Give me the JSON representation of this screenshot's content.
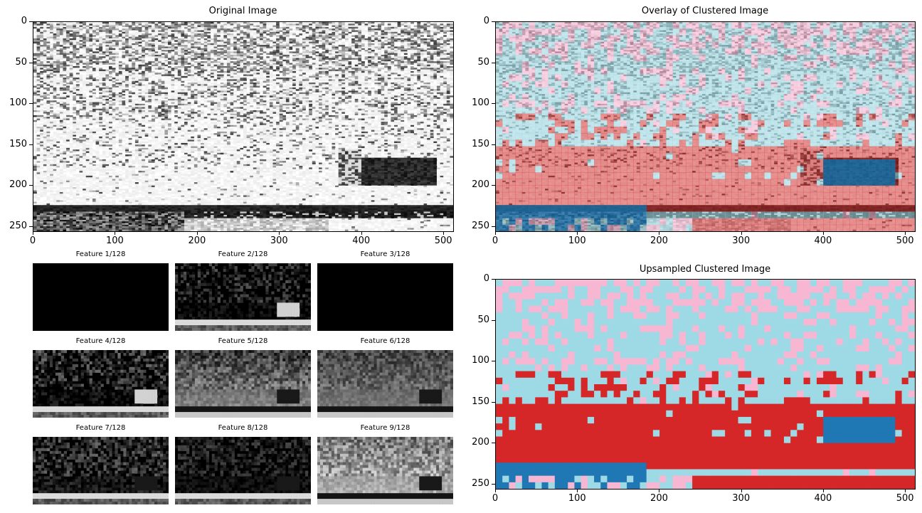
{
  "figure": {
    "panels": {
      "original": {
        "title": "Original Image"
      },
      "overlay": {
        "title": "Overlay of Clustered Image"
      },
      "upsampled": {
        "title": "Upsampled Clustered Image"
      }
    },
    "features": [
      {
        "title": "Feature 1/128"
      },
      {
        "title": "Feature 2/128"
      },
      {
        "title": "Feature 3/128"
      },
      {
        "title": "Feature 4/128"
      },
      {
        "title": "Feature 5/128"
      },
      {
        "title": "Feature 6/128"
      },
      {
        "title": "Feature 7/128"
      },
      {
        "title": "Feature 8/128"
      },
      {
        "title": "Feature 9/128"
      }
    ],
    "colors": {
      "cluster_pink": "#f7b6d2",
      "cluster_cyan": "#9edae5",
      "cluster_red": "#d62728",
      "cluster_blue": "#1f77b4"
    }
  },
  "chart_data": [
    {
      "type": "heatmap",
      "title": "Original Image",
      "xlim": [
        0,
        512
      ],
      "ylim": [
        256,
        0
      ],
      "xticks": [
        "0",
        "100",
        "200",
        "300",
        "400",
        "500"
      ],
      "yticks": [
        "0",
        "50",
        "100",
        "150",
        "200",
        "250"
      ],
      "colormap": "gray"
    },
    {
      "type": "heatmap",
      "title": "Overlay of Clustered Image",
      "xlim": [
        0,
        512
      ],
      "ylim": [
        256,
        0
      ],
      "xticks": [
        "0",
        "100",
        "200",
        "300",
        "400",
        "500"
      ],
      "yticks": [
        "0",
        "50",
        "100",
        "150",
        "200",
        "250"
      ],
      "colormap": "tab20 overlay"
    },
    {
      "type": "heatmap",
      "title": "Upsampled Clustered Image",
      "xlim": [
        0,
        512
      ],
      "ylim": [
        256,
        0
      ],
      "xticks": [
        "0",
        "100",
        "200",
        "300",
        "400",
        "500"
      ],
      "yticks": [
        "0",
        "50",
        "100",
        "150",
        "200",
        "250"
      ],
      "colormap": "tab20",
      "clusters": 4
    }
  ]
}
